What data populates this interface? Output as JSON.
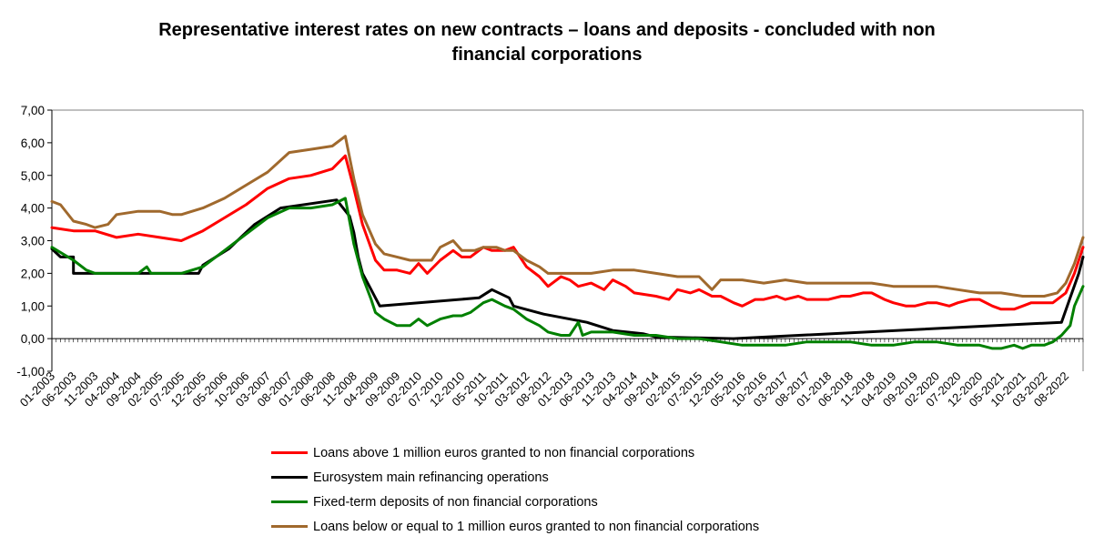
{
  "chart_data": {
    "type": "line",
    "title": "Representative interest rates on new contracts – loans and deposits - concluded with non financial corporations",
    "title_lines": [
      "Representative interest rates on new contracts – loans and deposits - concluded with non",
      "financial corporations"
    ],
    "xlabel": "",
    "ylabel": "",
    "ylim": [
      -1,
      7
    ],
    "yticks": [
      "-1,00",
      "0,00",
      "1,00",
      "2,00",
      "3,00",
      "4,00",
      "5,00",
      "6,00",
      "7,00"
    ],
    "xticks": [
      "01-2003",
      "06-2003",
      "11-2003",
      "04-2004",
      "09-2004",
      "02-2005",
      "07-2005",
      "12-2005",
      "05-2006",
      "10-2006",
      "03-2007",
      "08-2007",
      "01-2008",
      "06-2008",
      "11-2008",
      "04-2009",
      "09-2009",
      "02-2010",
      "07-2010",
      "12-2010",
      "05-2011",
      "10-2011",
      "03-2012",
      "08-2012",
      "01-2013",
      "06-2013",
      "11-2013",
      "04-2014",
      "09-2014",
      "02-2015",
      "07-2015",
      "12-2015",
      "05-2016",
      "10-2016",
      "03-2017",
      "08-2017",
      "01-2018",
      "06-2018",
      "11-2018",
      "04-2019",
      "09-2019",
      "02-2020",
      "07-2020",
      "12-2020",
      "05-2021",
      "10-2021",
      "03-2022",
      "08-2022"
    ],
    "x_range": [
      "01-2003",
      "12-2022"
    ],
    "grid": false,
    "legend_position": "bottom",
    "series": [
      {
        "name": "Loans above 1 million euros granted to non financial corporations",
        "color": "#FF0000",
        "points": [
          [
            "01-2003",
            3.4
          ],
          [
            "06-2003",
            3.3
          ],
          [
            "11-2003",
            3.3
          ],
          [
            "04-2004",
            3.1
          ],
          [
            "09-2004",
            3.2
          ],
          [
            "02-2005",
            3.1
          ],
          [
            "07-2005",
            3.0
          ],
          [
            "12-2005",
            3.3
          ],
          [
            "05-2006",
            3.7
          ],
          [
            "10-2006",
            4.1
          ],
          [
            "03-2007",
            4.6
          ],
          [
            "08-2007",
            4.9
          ],
          [
            "01-2008",
            5.0
          ],
          [
            "06-2008",
            5.2
          ],
          [
            "09-2008",
            5.6
          ],
          [
            "11-2008",
            4.6
          ],
          [
            "01-2009",
            3.5
          ],
          [
            "04-2009",
            2.4
          ],
          [
            "06-2009",
            2.1
          ],
          [
            "09-2009",
            2.1
          ],
          [
            "12-2009",
            2.0
          ],
          [
            "02-2010",
            2.3
          ],
          [
            "04-2010",
            2.0
          ],
          [
            "07-2010",
            2.4
          ],
          [
            "10-2010",
            2.7
          ],
          [
            "12-2010",
            2.5
          ],
          [
            "02-2011",
            2.5
          ],
          [
            "05-2011",
            2.8
          ],
          [
            "07-2011",
            2.7
          ],
          [
            "10-2011",
            2.7
          ],
          [
            "12-2011",
            2.8
          ],
          [
            "03-2012",
            2.2
          ],
          [
            "06-2012",
            1.9
          ],
          [
            "08-2012",
            1.6
          ],
          [
            "11-2012",
            1.9
          ],
          [
            "01-2013",
            1.8
          ],
          [
            "03-2013",
            1.6
          ],
          [
            "06-2013",
            1.7
          ],
          [
            "09-2013",
            1.5
          ],
          [
            "11-2013",
            1.8
          ],
          [
            "02-2014",
            1.6
          ],
          [
            "04-2014",
            1.4
          ],
          [
            "09-2014",
            1.3
          ],
          [
            "12-2014",
            1.2
          ],
          [
            "02-2015",
            1.5
          ],
          [
            "05-2015",
            1.4
          ],
          [
            "07-2015",
            1.5
          ],
          [
            "10-2015",
            1.3
          ],
          [
            "12-2015",
            1.3
          ],
          [
            "03-2016",
            1.1
          ],
          [
            "05-2016",
            1.0
          ],
          [
            "08-2016",
            1.2
          ],
          [
            "10-2016",
            1.2
          ],
          [
            "01-2017",
            1.3
          ],
          [
            "03-2017",
            1.2
          ],
          [
            "06-2017",
            1.3
          ],
          [
            "08-2017",
            1.2
          ],
          [
            "11-2017",
            1.2
          ],
          [
            "01-2018",
            1.2
          ],
          [
            "04-2018",
            1.3
          ],
          [
            "06-2018",
            1.3
          ],
          [
            "09-2018",
            1.4
          ],
          [
            "11-2018",
            1.4
          ],
          [
            "02-2019",
            1.2
          ],
          [
            "04-2019",
            1.1
          ],
          [
            "07-2019",
            1.0
          ],
          [
            "09-2019",
            1.0
          ],
          [
            "12-2019",
            1.1
          ],
          [
            "02-2020",
            1.1
          ],
          [
            "05-2020",
            1.0
          ],
          [
            "07-2020",
            1.1
          ],
          [
            "10-2020",
            1.2
          ],
          [
            "12-2020",
            1.2
          ],
          [
            "03-2021",
            1.0
          ],
          [
            "05-2021",
            0.9
          ],
          [
            "08-2021",
            0.9
          ],
          [
            "10-2021",
            1.0
          ],
          [
            "12-2021",
            1.1
          ],
          [
            "03-2022",
            1.1
          ],
          [
            "05-2022",
            1.1
          ],
          [
            "08-2022",
            1.4
          ],
          [
            "10-2022",
            2.0
          ],
          [
            "12-2022",
            2.8
          ]
        ]
      },
      {
        "name": "Eurosystem main refinancing operations",
        "color": "#000000",
        "points": [
          [
            "01-2003",
            2.75
          ],
          [
            "03-2003",
            2.5
          ],
          [
            "06-2003",
            2.5
          ],
          [
            "06-2003",
            2.0
          ],
          [
            "11-2005",
            2.0
          ],
          [
            "12-2005",
            2.25
          ],
          [
            "03-2006",
            2.5
          ],
          [
            "06-2006",
            2.75
          ],
          [
            "08-2006",
            3.0
          ],
          [
            "10-2006",
            3.25
          ],
          [
            "12-2006",
            3.5
          ],
          [
            "03-2007",
            3.75
          ],
          [
            "06-2007",
            4.0
          ],
          [
            "07-2008",
            4.25
          ],
          [
            "10-2008",
            3.75
          ],
          [
            "11-2008",
            3.25
          ],
          [
            "12-2008",
            2.5
          ],
          [
            "01-2009",
            2.0
          ],
          [
            "03-2009",
            1.5
          ],
          [
            "04-2009",
            1.25
          ],
          [
            "05-2009",
            1.0
          ],
          [
            "04-2011",
            1.25
          ],
          [
            "07-2011",
            1.5
          ],
          [
            "11-2011",
            1.25
          ],
          [
            "12-2011",
            1.0
          ],
          [
            "07-2012",
            0.75
          ],
          [
            "05-2013",
            0.5
          ],
          [
            "11-2013",
            0.25
          ],
          [
            "06-2014",
            0.15
          ],
          [
            "09-2014",
            0.05
          ],
          [
            "03-2016",
            0.0
          ],
          [
            "07-2022",
            0.5
          ],
          [
            "09-2022",
            1.25
          ],
          [
            "11-2022",
            2.0
          ],
          [
            "12-2022",
            2.5
          ]
        ]
      },
      {
        "name": "Fixed-term deposits of non financial corporations",
        "color": "#008000",
        "points": [
          [
            "01-2003",
            2.8
          ],
          [
            "06-2003",
            2.4
          ],
          [
            "09-2003",
            2.1
          ],
          [
            "11-2003",
            2.0
          ],
          [
            "04-2004",
            2.0
          ],
          [
            "09-2004",
            2.0
          ],
          [
            "11-2004",
            2.2
          ],
          [
            "12-2004",
            2.0
          ],
          [
            "02-2005",
            2.0
          ],
          [
            "07-2005",
            2.0
          ],
          [
            "12-2005",
            2.2
          ],
          [
            "05-2006",
            2.7
          ],
          [
            "10-2006",
            3.2
          ],
          [
            "03-2007",
            3.7
          ],
          [
            "08-2007",
            4.0
          ],
          [
            "01-2008",
            4.0
          ],
          [
            "06-2008",
            4.1
          ],
          [
            "09-2008",
            4.3
          ],
          [
            "11-2008",
            2.9
          ],
          [
            "01-2009",
            1.9
          ],
          [
            "03-2009",
            1.2
          ],
          [
            "04-2009",
            0.8
          ],
          [
            "06-2009",
            0.6
          ],
          [
            "09-2009",
            0.4
          ],
          [
            "12-2009",
            0.4
          ],
          [
            "02-2010",
            0.6
          ],
          [
            "04-2010",
            0.4
          ],
          [
            "07-2010",
            0.6
          ],
          [
            "10-2010",
            0.7
          ],
          [
            "12-2010",
            0.7
          ],
          [
            "02-2011",
            0.8
          ],
          [
            "05-2011",
            1.1
          ],
          [
            "07-2011",
            1.2
          ],
          [
            "10-2011",
            1.0
          ],
          [
            "12-2011",
            0.9
          ],
          [
            "03-2012",
            0.6
          ],
          [
            "06-2012",
            0.4
          ],
          [
            "08-2012",
            0.2
          ],
          [
            "11-2012",
            0.1
          ],
          [
            "01-2013",
            0.1
          ],
          [
            "03-2013",
            0.5
          ],
          [
            "04-2013",
            0.1
          ],
          [
            "06-2013",
            0.2
          ],
          [
            "11-2013",
            0.2
          ],
          [
            "04-2014",
            0.1
          ],
          [
            "09-2014",
            0.1
          ],
          [
            "02-2015",
            0.0
          ],
          [
            "07-2015",
            0.0
          ],
          [
            "12-2015",
            -0.1
          ],
          [
            "05-2016",
            -0.2
          ],
          [
            "10-2016",
            -0.2
          ],
          [
            "03-2017",
            -0.2
          ],
          [
            "08-2017",
            -0.1
          ],
          [
            "01-2018",
            -0.1
          ],
          [
            "06-2018",
            -0.1
          ],
          [
            "11-2018",
            -0.2
          ],
          [
            "04-2019",
            -0.2
          ],
          [
            "09-2019",
            -0.1
          ],
          [
            "02-2020",
            -0.1
          ],
          [
            "07-2020",
            -0.2
          ],
          [
            "12-2020",
            -0.2
          ],
          [
            "03-2021",
            -0.3
          ],
          [
            "05-2021",
            -0.3
          ],
          [
            "08-2021",
            -0.2
          ],
          [
            "10-2021",
            -0.3
          ],
          [
            "12-2021",
            -0.2
          ],
          [
            "03-2022",
            -0.2
          ],
          [
            "05-2022",
            -0.1
          ],
          [
            "07-2022",
            0.1
          ],
          [
            "09-2022",
            0.4
          ],
          [
            "10-2022",
            1.0
          ],
          [
            "12-2022",
            1.6
          ]
        ]
      },
      {
        "name": "Loans below or equal to 1 million euros granted to non financial corporations",
        "color": "#A0692D",
        "points": [
          [
            "01-2003",
            4.2
          ],
          [
            "03-2003",
            4.1
          ],
          [
            "06-2003",
            3.6
          ],
          [
            "09-2003",
            3.5
          ],
          [
            "11-2003",
            3.4
          ],
          [
            "02-2004",
            3.5
          ],
          [
            "04-2004",
            3.8
          ],
          [
            "09-2004",
            3.9
          ],
          [
            "02-2005",
            3.9
          ],
          [
            "05-2005",
            3.8
          ],
          [
            "07-2005",
            3.8
          ],
          [
            "12-2005",
            4.0
          ],
          [
            "05-2006",
            4.3
          ],
          [
            "10-2006",
            4.7
          ],
          [
            "03-2007",
            5.1
          ],
          [
            "08-2007",
            5.7
          ],
          [
            "01-2008",
            5.8
          ],
          [
            "06-2008",
            5.9
          ],
          [
            "09-2008",
            6.2
          ],
          [
            "11-2008",
            4.9
          ],
          [
            "01-2009",
            3.8
          ],
          [
            "04-2009",
            2.9
          ],
          [
            "06-2009",
            2.6
          ],
          [
            "09-2009",
            2.5
          ],
          [
            "12-2009",
            2.4
          ],
          [
            "02-2010",
            2.4
          ],
          [
            "05-2010",
            2.4
          ],
          [
            "07-2010",
            2.8
          ],
          [
            "10-2010",
            3.0
          ],
          [
            "12-2010",
            2.7
          ],
          [
            "03-2011",
            2.7
          ],
          [
            "05-2011",
            2.8
          ],
          [
            "08-2011",
            2.8
          ],
          [
            "10-2011",
            2.7
          ],
          [
            "12-2011",
            2.7
          ],
          [
            "03-2012",
            2.4
          ],
          [
            "06-2012",
            2.2
          ],
          [
            "08-2012",
            2.0
          ],
          [
            "11-2012",
            2.0
          ],
          [
            "01-2013",
            2.0
          ],
          [
            "06-2013",
            2.0
          ],
          [
            "11-2013",
            2.1
          ],
          [
            "04-2014",
            2.1
          ],
          [
            "09-2014",
            2.0
          ],
          [
            "02-2015",
            1.9
          ],
          [
            "07-2015",
            1.9
          ],
          [
            "10-2015",
            1.5
          ],
          [
            "12-2015",
            1.8
          ],
          [
            "05-2016",
            1.8
          ],
          [
            "10-2016",
            1.7
          ],
          [
            "03-2017",
            1.8
          ],
          [
            "08-2017",
            1.7
          ],
          [
            "01-2018",
            1.7
          ],
          [
            "06-2018",
            1.7
          ],
          [
            "11-2018",
            1.7
          ],
          [
            "04-2019",
            1.6
          ],
          [
            "09-2019",
            1.6
          ],
          [
            "02-2020",
            1.6
          ],
          [
            "07-2020",
            1.5
          ],
          [
            "12-2020",
            1.4
          ],
          [
            "05-2021",
            1.4
          ],
          [
            "10-2021",
            1.3
          ],
          [
            "03-2022",
            1.3
          ],
          [
            "06-2022",
            1.4
          ],
          [
            "08-2022",
            1.7
          ],
          [
            "10-2022",
            2.3
          ],
          [
            "12-2022",
            3.1
          ]
        ]
      }
    ]
  }
}
